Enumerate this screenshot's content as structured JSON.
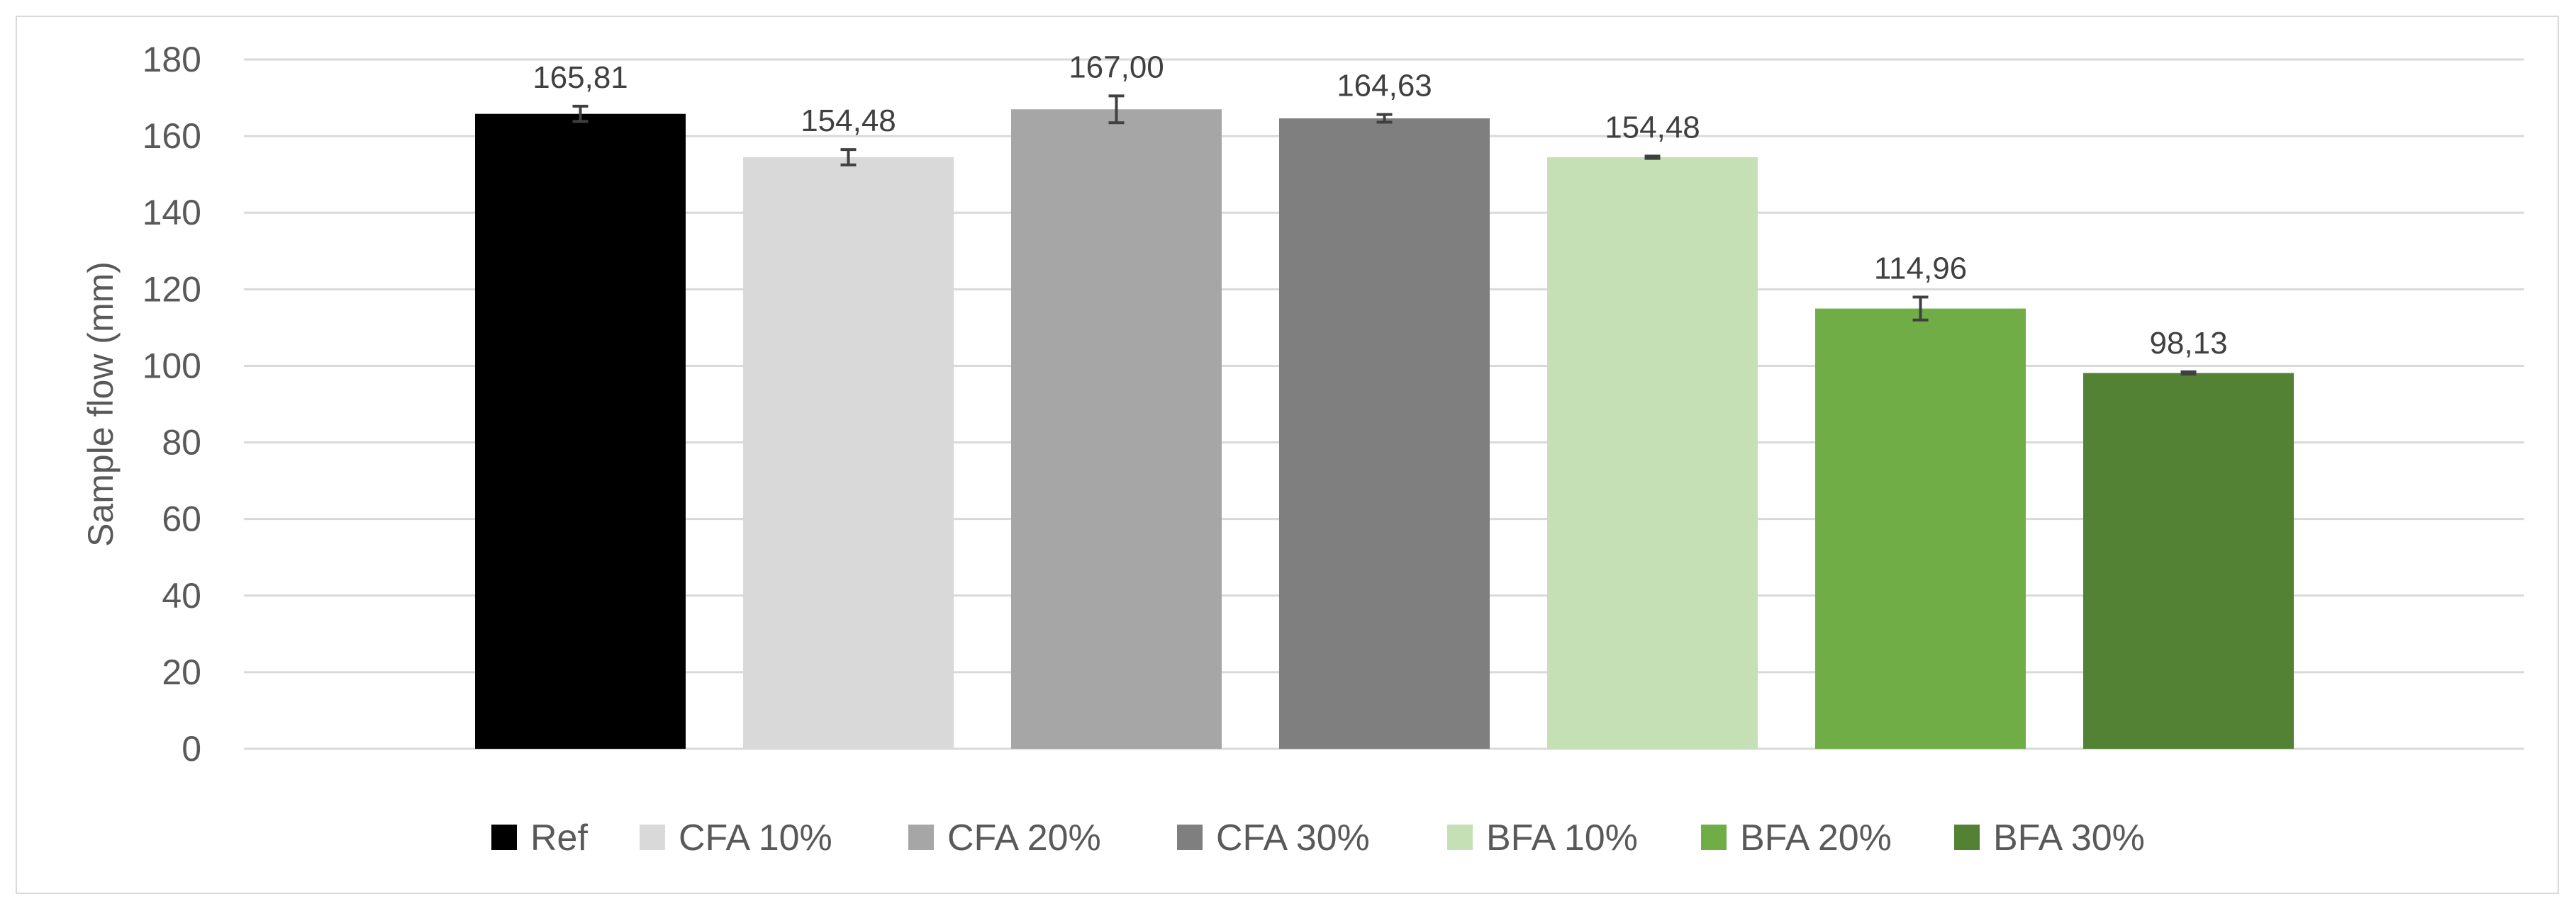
{
  "chart_data": {
    "type": "bar",
    "ylabel": "Sample flow (mm)",
    "xlabel": "",
    "ylim": [
      0,
      180
    ],
    "yticks": [
      0,
      20,
      40,
      60,
      80,
      100,
      120,
      140,
      160,
      180
    ],
    "grid": true,
    "legend_position": "bottom",
    "series": [
      {
        "name": "Ref",
        "value": 165.81,
        "error": 2,
        "label": "165,81",
        "color": "#000000"
      },
      {
        "name": "CFA 10%",
        "value": 154.48,
        "error": 2,
        "label": "154,48",
        "color": "#d9d9d9"
      },
      {
        "name": "CFA 20%",
        "value": 167.0,
        "error": 3.5,
        "label": "167,00",
        "color": "#a6a6a6"
      },
      {
        "name": "CFA 30%",
        "value": 164.63,
        "error": 1,
        "label": "164,63",
        "color": "#7f7f7f"
      },
      {
        "name": "BFA 10%",
        "value": 154.48,
        "error": 0.3,
        "label": "154,48",
        "color": "#c5e0b4"
      },
      {
        "name": "BFA 20%",
        "value": 114.96,
        "error": 3,
        "label": "114,96",
        "color": "#70ad47"
      },
      {
        "name": "BFA 30%",
        "value": 98.13,
        "error": 0.3,
        "label": "98,13",
        "color": "#548235"
      }
    ]
  }
}
